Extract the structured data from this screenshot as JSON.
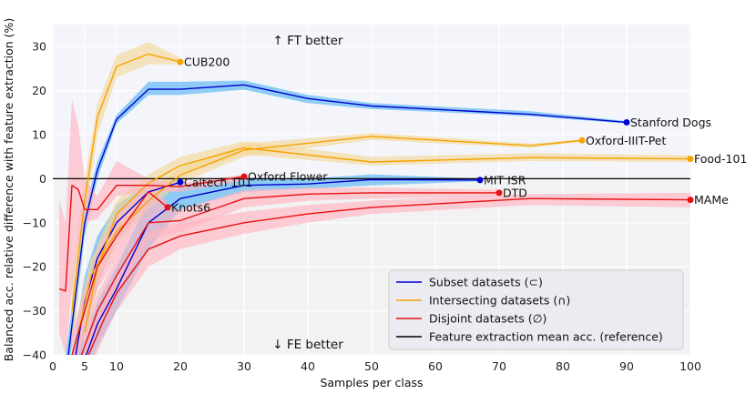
{
  "chart_data": {
    "type": "line",
    "xlabel": "Samples per class",
    "ylabel": "Balanced acc. relative difference with feature extraction (%)",
    "xlim": [
      0,
      100
    ],
    "ylim": [
      -40,
      35
    ],
    "xticks": [
      0,
      5,
      10,
      20,
      30,
      40,
      50,
      60,
      70,
      80,
      90,
      100
    ],
    "yticks": [
      -40,
      -30,
      -20,
      -10,
      0,
      10,
      20,
      30
    ],
    "grid": true,
    "background_regions": [
      {
        "name": "ft-better",
        "y_range": [
          0,
          35
        ],
        "color": "#f4f5fb"
      },
      {
        "name": "fe-better",
        "y_range": [
          -40,
          0
        ],
        "color": "#f2f2f2"
      }
    ],
    "annotations": [
      {
        "text": "↑ FT better",
        "x": 40,
        "y": 31.5
      },
      {
        "text": "↓ FE better",
        "x": 40,
        "y": -37.5
      }
    ],
    "reference_line": {
      "y": 0,
      "color": "#000000"
    },
    "groups": {
      "subset": {
        "color": "#0000cc",
        "band": "#57b5f5"
      },
      "intersecting": {
        "color": "#f5a300",
        "band": "#f5d79a"
      },
      "disjoint": {
        "color": "#e81010",
        "band": "#ffb3c1"
      }
    },
    "series": [
      {
        "name": "Stanford Dogs",
        "group": "subset",
        "label": "Stanford Dogs",
        "x": [
          2,
          5,
          7,
          10,
          15,
          20,
          30,
          40,
          50,
          75,
          90
        ],
        "y": [
          -45,
          -10,
          2,
          13.5,
          20.3,
          20.3,
          21.3,
          18.2,
          16.5,
          14.6,
          12.8
        ],
        "lower": [
          -50,
          -13,
          0,
          12.5,
          19,
          19,
          20.2,
          17.2,
          15.8,
          14.2,
          12.5
        ],
        "upper": [
          -40,
          -7,
          4,
          14.5,
          22,
          22,
          22.3,
          19,
          17.2,
          15.3,
          13.1
        ]
      },
      {
        "name": "Caltech 101",
        "group": "subset",
        "label": "Caltech 101",
        "x": [
          3,
          5,
          7,
          10,
          15,
          20
        ],
        "y": [
          -45,
          -28,
          -18,
          -10,
          -3,
          -0.8
        ],
        "lower": [
          -50,
          -35,
          -24,
          -14,
          -6,
          -1.5
        ],
        "upper": [
          -40,
          -22,
          -13,
          -6,
          -1,
          0
        ]
      },
      {
        "name": "MIT ISR",
        "group": "subset",
        "label": "MIT ISR",
        "x": [
          4,
          7,
          10,
          15,
          20,
          30,
          40,
          50,
          67
        ],
        "y": [
          -45,
          -33,
          -25,
          -10,
          -4.5,
          -1.5,
          -1.2,
          -0.2,
          -0.3
        ],
        "lower": [
          -50,
          -38,
          -30,
          -16,
          -7,
          -3,
          -2.3,
          -1.5,
          -0.6
        ],
        "upper": [
          -40,
          -28,
          -20,
          -5,
          -2,
          0,
          0,
          1,
          0
        ]
      },
      {
        "name": "CUB200",
        "group": "intersecting",
        "label": "CUB200",
        "x": [
          3,
          5,
          7,
          10,
          15,
          20
        ],
        "y": [
          -30,
          -5,
          14,
          25.5,
          28.3,
          26.5
        ],
        "lower": [
          -40,
          -10,
          10,
          23,
          26,
          26
        ],
        "upper": [
          -22,
          0,
          17,
          28,
          31,
          27.5
        ]
      },
      {
        "name": "Oxford-IIIT-Pet",
        "group": "intersecting",
        "label": "Oxford-IIIT-Pet",
        "x": [
          4,
          6,
          10,
          15,
          20,
          30,
          50,
          75,
          83
        ],
        "y": [
          -35,
          -22,
          -12,
          -5,
          0.8,
          6.5,
          9.6,
          7.5,
          8.7
        ],
        "lower": [
          -40,
          -26,
          -15,
          -7,
          -1,
          5,
          8.8,
          7,
          8.4
        ],
        "upper": [
          -30,
          -18,
          -9,
          -3,
          2.5,
          8,
          10.4,
          8,
          9
        ]
      },
      {
        "name": "Food-101",
        "group": "intersecting",
        "label": "Food-101",
        "x": [
          5,
          7,
          10,
          15,
          20,
          30,
          50,
          75,
          100
        ],
        "y": [
          -35,
          -20,
          -8,
          -1,
          3,
          7,
          3.8,
          4.8,
          4.5
        ],
        "lower": [
          -40,
          -25,
          -12,
          -4,
          1,
          5.5,
          3,
          4,
          3.8
        ],
        "upper": [
          -30,
          -15,
          -5,
          1,
          5,
          8.5,
          5,
          5.8,
          5.3
        ]
      },
      {
        "name": "Oxford Flower",
        "group": "disjoint",
        "label": "Oxford Flower",
        "x": [
          1,
          2,
          3,
          4,
          5,
          7,
          10,
          15,
          20,
          30
        ],
        "y": [
          -25,
          -25.5,
          -1.5,
          -2.5,
          -7,
          -7,
          -1.5,
          -1.5,
          -1.8,
          0.5
        ],
        "lower": [
          -35,
          -40,
          -25,
          -15,
          -10,
          -9,
          -4,
          -3,
          -3,
          -0.5
        ],
        "upper": [
          -5,
          -10,
          18,
          12,
          0,
          -4,
          4,
          0,
          -1,
          1
        ]
      },
      {
        "name": "Knots6",
        "group": "disjoint",
        "label": "Knots6",
        "x": [
          3,
          5,
          7,
          10,
          15,
          18
        ],
        "y": [
          -40,
          -30,
          -20,
          -13,
          -3,
          -6.5
        ],
        "lower": [
          -45,
          -35,
          -25,
          -18,
          -6,
          -7
        ],
        "upper": [
          -35,
          -25,
          -16,
          -8,
          -1,
          -5.5
        ]
      },
      {
        "name": "DTD",
        "group": "disjoint",
        "label": "DTD",
        "x": [
          4,
          7,
          10,
          15,
          20,
          30,
          40,
          50,
          70
        ],
        "y": [
          -42,
          -30,
          -22,
          -10,
          -9.5,
          -4.5,
          -3.5,
          -3.2,
          -3.2
        ],
        "lower": [
          -45,
          -34,
          -26,
          -14,
          -12,
          -6.5,
          -5,
          -4.5,
          -4
        ],
        "upper": [
          -38,
          -26,
          -18,
          -6,
          -7,
          -2.5,
          -2,
          -2,
          -2.5
        ]
      },
      {
        "name": "MAMe",
        "group": "disjoint",
        "label": "MAMe",
        "x": [
          5,
          8,
          10,
          15,
          20,
          30,
          40,
          50,
          75,
          100
        ],
        "y": [
          -42,
          -32,
          -26,
          -16,
          -13,
          -10,
          -8,
          -6.5,
          -4.5,
          -4.8
        ],
        "lower": [
          -46,
          -36,
          -30,
          -20,
          -16,
          -12.5,
          -10,
          -8,
          -6,
          -6.5
        ],
        "upper": [
          -38,
          -28,
          -22,
          -12,
          -10,
          -7.5,
          -6,
          -5,
          -3.5,
          -3.2
        ]
      }
    ],
    "legend": {
      "placement": "lower-right",
      "entries": [
        {
          "label": "Subset datasets (⊂)",
          "color": "#0000cc"
        },
        {
          "label": "Intersecting datasets (∩)",
          "color": "#f5a300"
        },
        {
          "label": "Disjoint datasets (∅)",
          "color": "#e81010"
        },
        {
          "label": "Feature extraction mean acc. (reference)",
          "color": "#000000"
        }
      ]
    }
  }
}
